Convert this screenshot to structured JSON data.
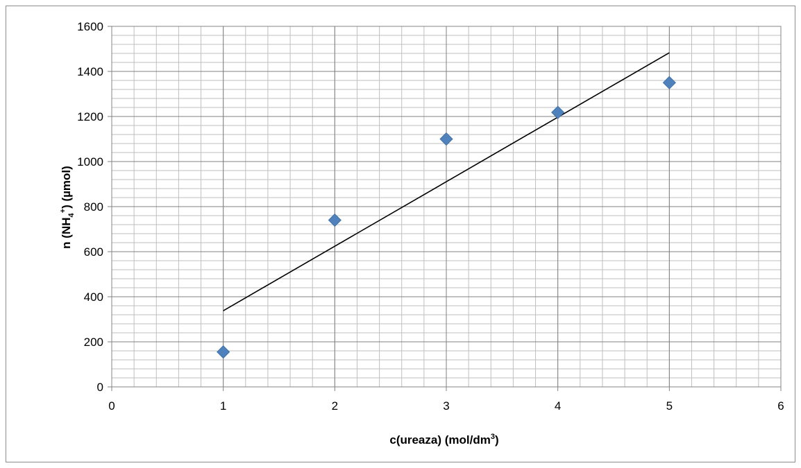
{
  "chart_data": {
    "type": "scatter",
    "title": "",
    "xlabel": {
      "base": "c(ureaza) (mol/dm",
      "sup": "3",
      "tail": ")"
    },
    "ylabel": {
      "base": "n (NH",
      "sub": "4",
      "sup": "+",
      "tail": ") (µmol)"
    },
    "xlim": [
      0,
      6
    ],
    "ylim": [
      0,
      1600
    ],
    "x_ticks": [
      0,
      1,
      2,
      3,
      4,
      5,
      6
    ],
    "y_ticks": [
      0,
      200,
      400,
      600,
      800,
      1000,
      1200,
      1400,
      1600
    ],
    "x_minor_per_major": 5,
    "y_minor_per_major": 5,
    "grid": true,
    "legend": "none",
    "series": [
      {
        "x": [
          1,
          2,
          3,
          4,
          5
        ],
        "y": [
          155,
          740,
          1100,
          1218,
          1350
        ],
        "marker": "diamond",
        "color": "#4f81bd"
      }
    ],
    "trendline": {
      "type": "linear",
      "x": [
        1,
        5
      ],
      "y": [
        338,
        1483
      ],
      "color": "#000000"
    }
  }
}
